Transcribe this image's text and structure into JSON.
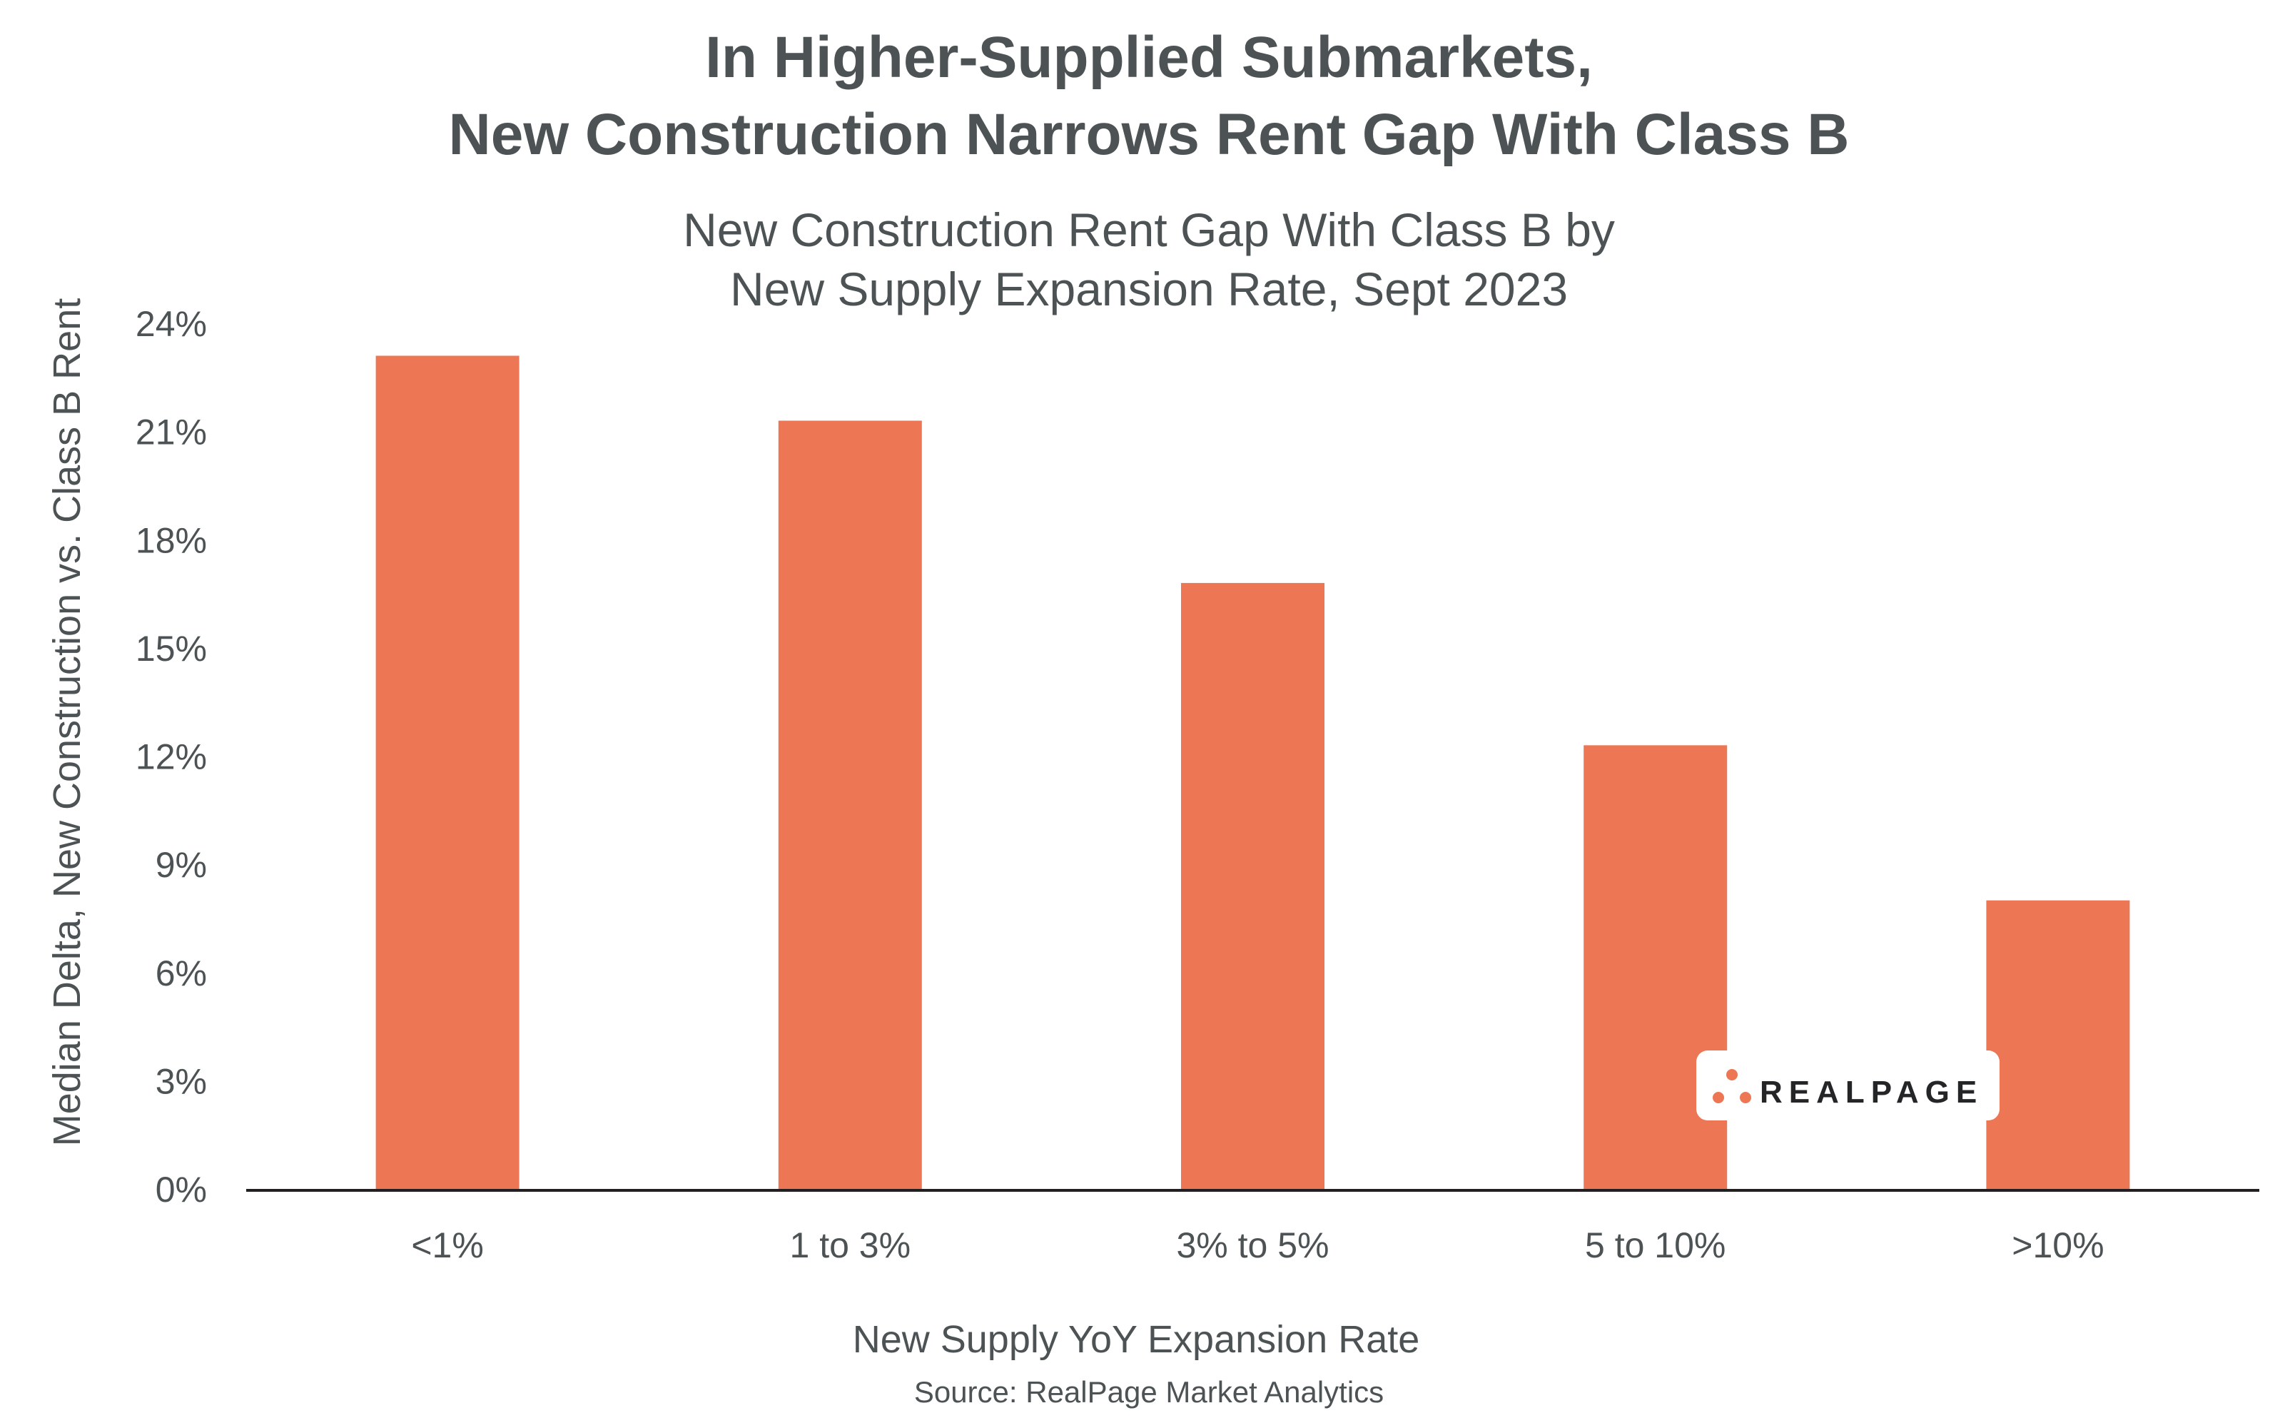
{
  "chart_data": {
    "type": "bar",
    "title": [
      "In Higher-Supplied Submarkets,",
      "New Construction Narrows Rent Gap With Class B"
    ],
    "subtitle": [
      "New Construction Rent Gap With Class B by",
      "New Supply Expansion Rate, Sept 2023"
    ],
    "xlabel": "New Supply YoY Expansion Rate",
    "ylabel": "Median Delta, New Construction vs. Class B Rent",
    "categories": [
      "<1%",
      "1 to 3%",
      "3% to 5%",
      "5 to 10%",
      ">10%"
    ],
    "values": [
      23.1,
      21.3,
      16.8,
      12.3,
      8.0
    ],
    "ylim": [
      0,
      24
    ],
    "yticks": [
      0,
      3,
      6,
      9,
      12,
      15,
      18,
      21,
      24
    ],
    "ytick_labels": [
      "0%",
      "3%",
      "6%",
      "9%",
      "12%",
      "15%",
      "18%",
      "21%",
      "24%"
    ],
    "grid": false,
    "bar_color": "#ed7755",
    "source": "Source: RealPage Market Analytics"
  },
  "logo": {
    "text": "REALPAGE",
    "color": "#ed7755"
  }
}
